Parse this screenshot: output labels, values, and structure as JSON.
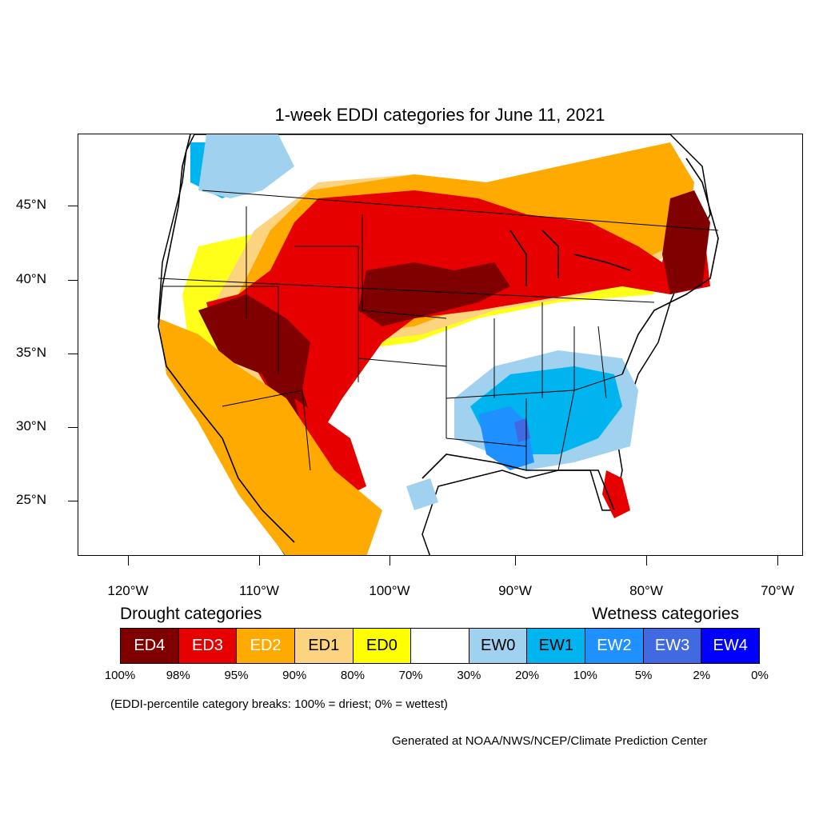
{
  "title": "1-week EDDI categories for June 11, 2021",
  "colors": {
    "ED4": "#800000",
    "ED3": "#e60000",
    "ED2": "#ffaa00",
    "ED1": "#fcd37f",
    "ED0": "#ffff00",
    "neutral": "#ffffff",
    "EW0": "#a0d2f0",
    "EW1": "#00b4f0",
    "EW2": "#1e90ff",
    "EW3": "#4169e1",
    "EW4": "#0000ff"
  },
  "map": {
    "latitude_labels": [
      "45°N",
      "40°N",
      "35°N",
      "30°N",
      "25°N"
    ],
    "longitude_labels": [
      "120°W",
      "110°W",
      "100°W",
      "90°W",
      "80°W",
      "70°W"
    ]
  },
  "legend": {
    "drought_title": "Drought categories",
    "wetness_title": "Wetness categories",
    "categories": [
      {
        "label": "ED4",
        "color_key": "ED4",
        "text_color": "#ffffff"
      },
      {
        "label": "ED3",
        "color_key": "ED3",
        "text_color": "#ffffff"
      },
      {
        "label": "ED2",
        "color_key": "ED2",
        "text_color": "#ffffff"
      },
      {
        "label": "ED1",
        "color_key": "ED1",
        "text_color": "#000000"
      },
      {
        "label": "ED0",
        "color_key": "ED0",
        "text_color": "#000000"
      },
      {
        "label": "",
        "color_key": "neutral",
        "text_color": "#000000"
      },
      {
        "label": "EW0",
        "color_key": "EW0",
        "text_color": "#000000"
      },
      {
        "label": "EW1",
        "color_key": "EW1",
        "text_color": "#000000"
      },
      {
        "label": "EW2",
        "color_key": "EW2",
        "text_color": "#ffffff"
      },
      {
        "label": "EW3",
        "color_key": "EW3",
        "text_color": "#ffffff"
      },
      {
        "label": "EW4",
        "color_key": "EW4",
        "text_color": "#ffffff"
      }
    ],
    "percentiles": [
      "100%",
      "98%",
      "95%",
      "90%",
      "80%",
      "70%",
      "30%",
      "20%",
      "10%",
      "5%",
      "2%",
      "0%"
    ]
  },
  "note": "(EDDI-percentile category breaks: 100% = driest; 0% = wettest)",
  "credit": "Generated at NOAA/NWS/NCEP/Climate Prediction Center"
}
